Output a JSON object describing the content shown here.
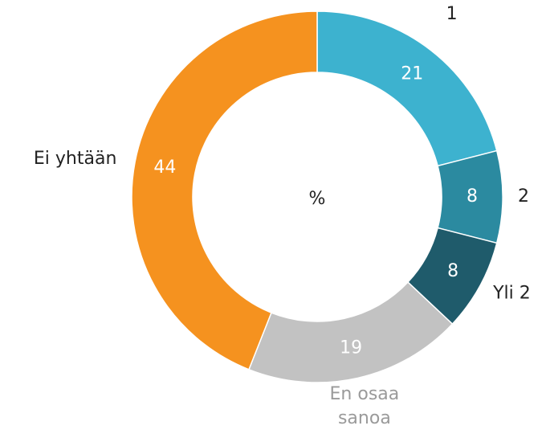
{
  "chart_data": {
    "type": "donut",
    "center_label": "%",
    "categories": [
      "1",
      "2",
      "Yli 2",
      "En osaa sanoa",
      "Ei yhtään"
    ],
    "values": [
      21,
      8,
      8,
      19,
      44
    ],
    "colors": [
      "#3db2cf",
      "#2b8aa0",
      "#1f5b6b",
      "#c2c2c2",
      "#f5921f"
    ],
    "label_colors": [
      "#222222",
      "#222222",
      "#222222",
      "#9a9a9a",
      "#222222"
    ]
  }
}
